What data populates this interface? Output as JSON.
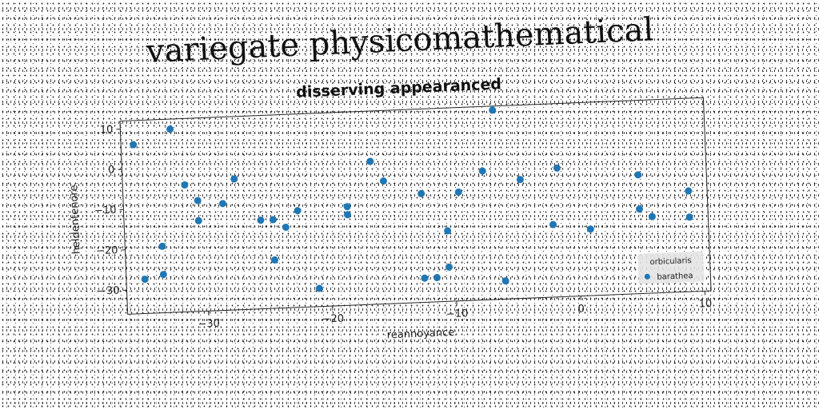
{
  "page": {
    "super_title": "variegate physicomathematical"
  },
  "chart_data": {
    "type": "scatter",
    "title": "disserving appearanced",
    "xlabel": "reannoyance",
    "ylabel": "heldentenore",
    "xlim": [
      -36.5,
      10.5
    ],
    "ylim": [
      -36,
      12
    ],
    "xticks": [
      -30,
      -20,
      -10,
      0,
      10
    ],
    "yticks": [
      10,
      0,
      -10,
      -20,
      -30
    ],
    "xtick_labels": [
      "−30",
      "−20",
      "−10",
      "0",
      "10"
    ],
    "ytick_labels": [
      "10",
      "0",
      "−10",
      "−20",
      "−30"
    ],
    "grid": false,
    "legend": {
      "title": "orbicularis",
      "placement": "bottom-right"
    },
    "series": [
      {
        "name": "barathea",
        "color": "#1f77b4",
        "points": [
          [
            -35.5,
            6
          ],
          [
            -32.5,
            9.5
          ],
          [
            -31.5,
            -4.5
          ],
          [
            -30.5,
            -8.5
          ],
          [
            -30.5,
            -13.5
          ],
          [
            -28.5,
            -9.5
          ],
          [
            -27.5,
            -3.5
          ],
          [
            -33.5,
            -19.5
          ],
          [
            -33.5,
            -26.5
          ],
          [
            -35,
            -27.5
          ],
          [
            -25.5,
            -14
          ],
          [
            -24.5,
            -14
          ],
          [
            -24.5,
            -24
          ],
          [
            -23.5,
            -16
          ],
          [
            -22.5,
            -12
          ],
          [
            -21,
            -31.5
          ],
          [
            -18.5,
            -11.5
          ],
          [
            -18.5,
            -13.5
          ],
          [
            -16.5,
            -0.5
          ],
          [
            -15.5,
            -5.5
          ],
          [
            -12.5,
            -9
          ],
          [
            -12.5,
            -30
          ],
          [
            -11.5,
            -30
          ],
          [
            -10.5,
            -18.5
          ],
          [
            -10.5,
            -27.5
          ],
          [
            -9.5,
            -9
          ],
          [
            -7.5,
            -4
          ],
          [
            -6.5,
            11
          ],
          [
            -6,
            -31.5
          ],
          [
            -4.5,
            -6.5
          ],
          [
            -2,
            -18
          ],
          [
            -1.5,
            -4
          ],
          [
            1,
            -19.5
          ],
          [
            5,
            -6.5
          ],
          [
            5,
            -15
          ],
          [
            6,
            -17
          ],
          [
            9,
            -11
          ],
          [
            9,
            -17.5
          ]
        ]
      }
    ]
  }
}
